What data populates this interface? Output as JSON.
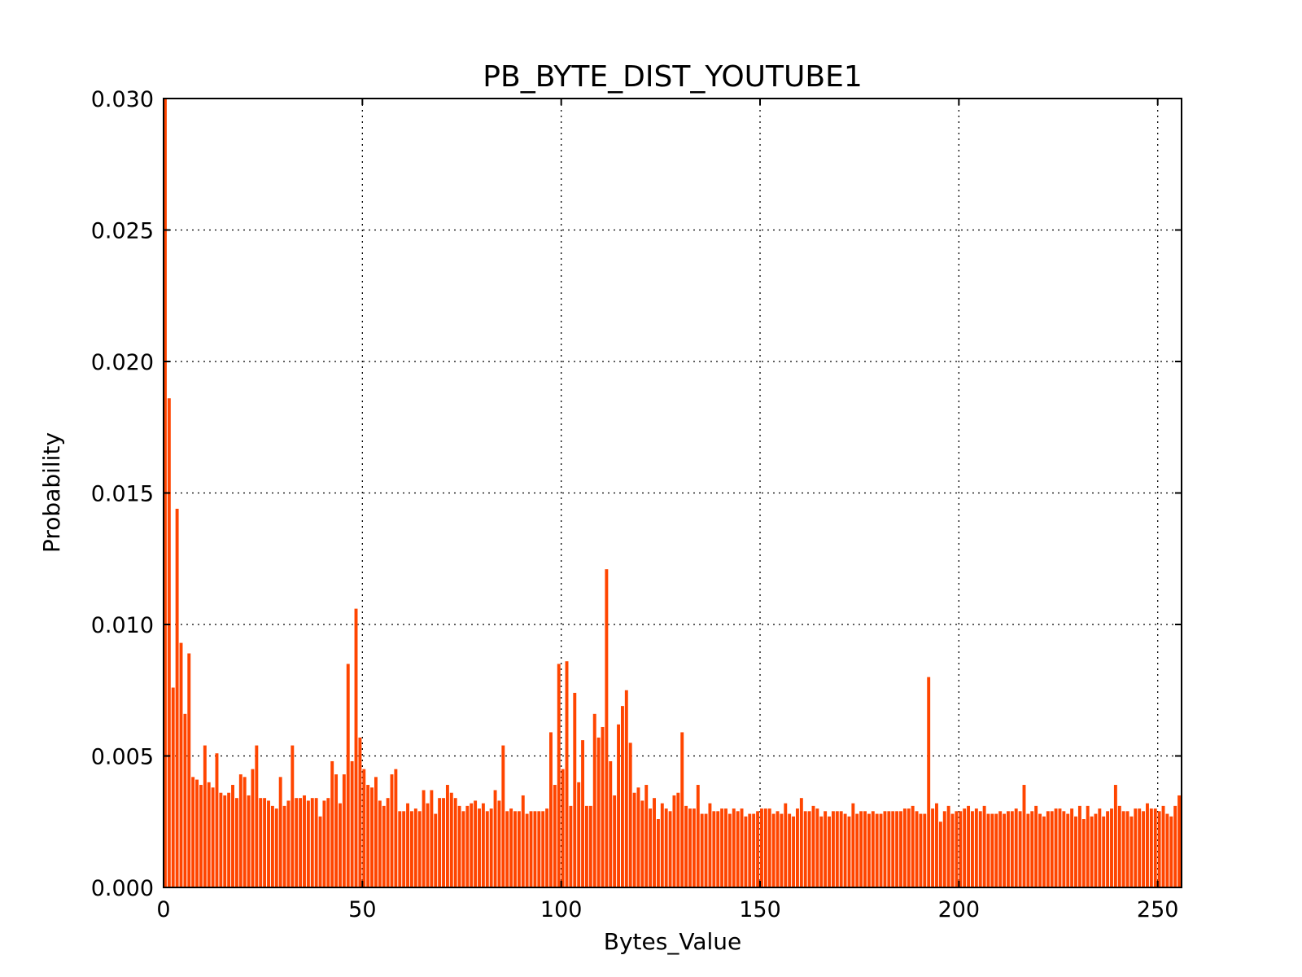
{
  "chart_data": {
    "type": "bar",
    "title": "PB_BYTE_DIST_YOUTUBE1",
    "xlabel": "Bytes_Value",
    "ylabel": "Probability",
    "xlim": [
      0,
      256
    ],
    "ylim": [
      0,
      0.03
    ],
    "xticks": [
      0,
      50,
      100,
      150,
      200,
      250
    ],
    "xtick_labels": [
      "0",
      "50",
      "100",
      "150",
      "200",
      "250"
    ],
    "yticks": [
      0,
      0.005,
      0.01,
      0.015,
      0.02,
      0.025,
      0.03
    ],
    "ytick_labels": [
      "0.000",
      "0.005",
      "0.010",
      "0.015",
      "0.020",
      "0.025",
      "0.030"
    ],
    "grid": true,
    "bar_color": "#ff4500",
    "x": [
      0,
      1,
      2,
      3,
      4,
      5,
      6,
      7,
      8,
      9,
      10,
      11,
      12,
      13,
      14,
      15,
      16,
      17,
      18,
      19,
      20,
      21,
      22,
      23,
      24,
      25,
      26,
      27,
      28,
      29,
      30,
      31,
      32,
      33,
      34,
      35,
      36,
      37,
      38,
      39,
      40,
      41,
      42,
      43,
      44,
      45,
      46,
      47,
      48,
      49,
      50,
      51,
      52,
      53,
      54,
      55,
      56,
      57,
      58,
      59,
      60,
      61,
      62,
      63,
      64,
      65,
      66,
      67,
      68,
      69,
      70,
      71,
      72,
      73,
      74,
      75,
      76,
      77,
      78,
      79,
      80,
      81,
      82,
      83,
      84,
      85,
      86,
      87,
      88,
      89,
      90,
      91,
      92,
      93,
      94,
      95,
      96,
      97,
      98,
      99,
      100,
      101,
      102,
      103,
      104,
      105,
      106,
      107,
      108,
      109,
      110,
      111,
      112,
      113,
      114,
      115,
      116,
      117,
      118,
      119,
      120,
      121,
      122,
      123,
      124,
      125,
      126,
      127,
      128,
      129,
      130,
      131,
      132,
      133,
      134,
      135,
      136,
      137,
      138,
      139,
      140,
      141,
      142,
      143,
      144,
      145,
      146,
      147,
      148,
      149,
      150,
      151,
      152,
      153,
      154,
      155,
      156,
      157,
      158,
      159,
      160,
      161,
      162,
      163,
      164,
      165,
      166,
      167,
      168,
      169,
      170,
      171,
      172,
      173,
      174,
      175,
      176,
      177,
      178,
      179,
      180,
      181,
      182,
      183,
      184,
      185,
      186,
      187,
      188,
      189,
      190,
      191,
      192,
      193,
      194,
      195,
      196,
      197,
      198,
      199,
      200,
      201,
      202,
      203,
      204,
      205,
      206,
      207,
      208,
      209,
      210,
      211,
      212,
      213,
      214,
      215,
      216,
      217,
      218,
      219,
      220,
      221,
      222,
      223,
      224,
      225,
      226,
      227,
      228,
      229,
      230,
      231,
      232,
      233,
      234,
      235,
      236,
      237,
      238,
      239,
      240,
      241,
      242,
      243,
      244,
      245,
      246,
      247,
      248,
      249,
      250,
      251,
      252,
      253,
      254,
      255
    ],
    "values": [
      0.03,
      0.0186,
      0.0076,
      0.0144,
      0.0093,
      0.0066,
      0.0089,
      0.0042,
      0.0041,
      0.0039,
      0.0054,
      0.004,
      0.0038,
      0.0051,
      0.0036,
      0.0035,
      0.0036,
      0.0039,
      0.0034,
      0.0043,
      0.0042,
      0.0035,
      0.0045,
      0.0054,
      0.0034,
      0.0034,
      0.0033,
      0.0031,
      0.003,
      0.0042,
      0.0031,
      0.0033,
      0.0054,
      0.0034,
      0.0034,
      0.0035,
      0.0033,
      0.0034,
      0.0034,
      0.0027,
      0.0033,
      0.0034,
      0.0048,
      0.0043,
      0.0032,
      0.0043,
      0.0085,
      0.0048,
      0.0106,
      0.0057,
      0.0045,
      0.0039,
      0.0038,
      0.0042,
      0.0033,
      0.0031,
      0.0034,
      0.0043,
      0.0045,
      0.0029,
      0.0029,
      0.0032,
      0.0029,
      0.003,
      0.0029,
      0.0037,
      0.0032,
      0.0037,
      0.0028,
      0.0034,
      0.0034,
      0.0039,
      0.0036,
      0.0034,
      0.0031,
      0.0029,
      0.0031,
      0.0032,
      0.0033,
      0.003,
      0.0032,
      0.0029,
      0.003,
      0.0037,
      0.0033,
      0.0054,
      0.0029,
      0.003,
      0.0029,
      0.0029,
      0.0035,
      0.0028,
      0.0029,
      0.0029,
      0.0029,
      0.0029,
      0.003,
      0.0059,
      0.0039,
      0.0085,
      0.0045,
      0.0086,
      0.0031,
      0.0074,
      0.004,
      0.0056,
      0.0031,
      0.0031,
      0.0066,
      0.0057,
      0.0061,
      0.0121,
      0.0048,
      0.0035,
      0.0062,
      0.0069,
      0.0075,
      0.0055,
      0.0036,
      0.0038,
      0.0033,
      0.0039,
      0.003,
      0.0034,
      0.0026,
      0.0032,
      0.003,
      0.0029,
      0.0035,
      0.0036,
      0.0059,
      0.0031,
      0.003,
      0.003,
      0.0039,
      0.0028,
      0.0028,
      0.0032,
      0.0029,
      0.0029,
      0.003,
      0.003,
      0.0028,
      0.003,
      0.0029,
      0.003,
      0.0027,
      0.0028,
      0.0028,
      0.0029,
      0.003,
      0.003,
      0.003,
      0.0028,
      0.0029,
      0.0028,
      0.0032,
      0.0028,
      0.0027,
      0.003,
      0.0034,
      0.0029,
      0.0029,
      0.0031,
      0.003,
      0.0027,
      0.0029,
      0.0027,
      0.0029,
      0.0029,
      0.0029,
      0.0028,
      0.0027,
      0.0032,
      0.0028,
      0.0029,
      0.0029,
      0.0028,
      0.0029,
      0.0028,
      0.0028,
      0.0029,
      0.0029,
      0.0029,
      0.0029,
      0.0029,
      0.003,
      0.003,
      0.0031,
      0.0029,
      0.0028,
      0.0028,
      0.008,
      0.003,
      0.0032,
      0.0025,
      0.0029,
      0.0031,
      0.0028,
      0.0029,
      0.0029,
      0.003,
      0.0031,
      0.0029,
      0.003,
      0.0029,
      0.0031,
      0.0028,
      0.0028,
      0.0028,
      0.0029,
      0.0028,
      0.0029,
      0.0029,
      0.003,
      0.0029,
      0.0039,
      0.0028,
      0.0029,
      0.0031,
      0.0028,
      0.0027,
      0.0029,
      0.0029,
      0.003,
      0.003,
      0.0029,
      0.0028,
      0.003,
      0.0027,
      0.0031,
      0.0026,
      0.0031,
      0.0027,
      0.0028,
      0.003,
      0.0027,
      0.0029,
      0.003,
      0.0039,
      0.0031,
      0.0029,
      0.0029,
      0.0027,
      0.003,
      0.003,
      0.0029,
      0.0032,
      0.003,
      0.003,
      0.0029,
      0.0031,
      0.0028,
      0.0027,
      0.0031,
      0.0035
    ]
  }
}
